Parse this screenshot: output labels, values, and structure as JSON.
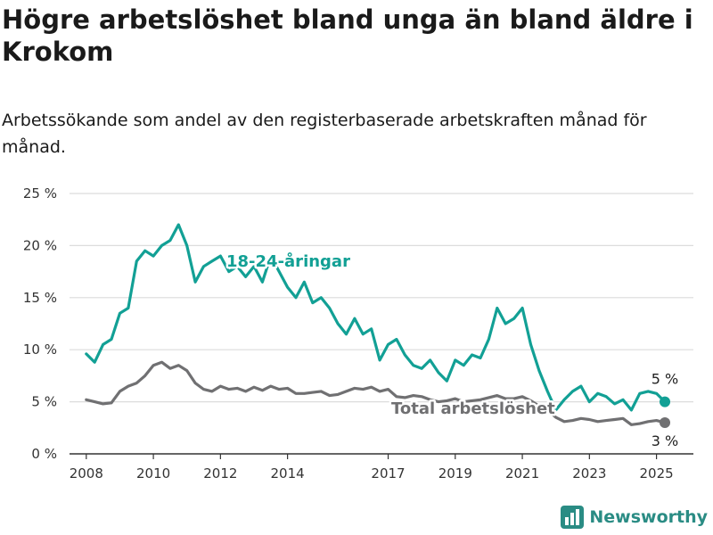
{
  "header": {
    "title": "Högre arbetslöshet bland unga än bland äldre i Krokom",
    "subtitle": "Arbetssökande som andel av den registerbaserade arbetskraften månad för månad."
  },
  "brand": {
    "name": "Newsworthy"
  },
  "colors": {
    "young": "#12a095",
    "total": "#707072",
    "grid": "#dcdcdc",
    "axis": "#333333",
    "brand": "#2a8c84"
  },
  "chart_data": {
    "type": "line",
    "ylim": [
      0,
      25
    ],
    "xlim": [
      2007.5,
      2026.1
    ],
    "y_ticks": [
      0,
      5,
      10,
      15,
      20,
      25
    ],
    "y_tick_labels": [
      "0 %",
      "5 %",
      "10 %",
      "15 %",
      "20 %",
      "25 %"
    ],
    "x_ticks": [
      2008,
      2010,
      2012,
      2014,
      2017,
      2019,
      2021,
      2023,
      2025
    ],
    "x_tick_labels": [
      "2008",
      "2010",
      "2012",
      "2014",
      "2017",
      "2019",
      "2021",
      "2023",
      "2025"
    ],
    "grid": true,
    "series": [
      {
        "name": "18-24-åringar",
        "end_label": "5 %",
        "x": [
          2008.0,
          2008.25,
          2008.5,
          2008.75,
          2009.0,
          2009.25,
          2009.5,
          2009.75,
          2010.0,
          2010.25,
          2010.5,
          2010.75,
          2011.0,
          2011.25,
          2011.5,
          2011.75,
          2012.0,
          2012.25,
          2012.5,
          2012.75,
          2013.0,
          2013.25,
          2013.5,
          2013.75,
          2014.0,
          2014.25,
          2014.5,
          2014.75,
          2015.0,
          2015.25,
          2015.5,
          2015.75,
          2016.0,
          2016.25,
          2016.5,
          2016.75,
          2017.0,
          2017.25,
          2017.5,
          2017.75,
          2018.0,
          2018.25,
          2018.5,
          2018.75,
          2019.0,
          2019.25,
          2019.5,
          2019.75,
          2020.0,
          2020.25,
          2020.5,
          2020.75,
          2021.0,
          2021.25,
          2021.5,
          2021.75,
          2022.0,
          2022.25,
          2022.5,
          2022.75,
          2023.0,
          2023.25,
          2023.5,
          2023.75,
          2024.0,
          2024.25,
          2024.5,
          2024.75,
          2025.0,
          2025.25
        ],
        "values": [
          9.6,
          8.8,
          10.5,
          11.0,
          13.5,
          14.0,
          18.5,
          19.5,
          19.0,
          20.0,
          20.5,
          22.0,
          20.0,
          16.5,
          18.0,
          18.5,
          19.0,
          17.5,
          18.0,
          17.0,
          18.0,
          16.5,
          19.0,
          17.5,
          16.0,
          15.0,
          16.5,
          14.5,
          15.0,
          14.0,
          12.5,
          11.5,
          13.0,
          11.5,
          12.0,
          9.0,
          10.5,
          11.0,
          9.5,
          8.5,
          8.2,
          9.0,
          7.8,
          7.0,
          9.0,
          8.5,
          9.5,
          9.2,
          11.0,
          14.0,
          12.5,
          13.0,
          14.0,
          10.5,
          8.0,
          6.0,
          4.2,
          5.2,
          6.0,
          6.5,
          5.0,
          5.8,
          5.5,
          4.8,
          5.2,
          4.2,
          5.8,
          6.0,
          5.8,
          5.0
        ]
      },
      {
        "name": "Total arbetslöshet",
        "end_label": "3 %",
        "x": [
          2008.0,
          2008.25,
          2008.5,
          2008.75,
          2009.0,
          2009.25,
          2009.5,
          2009.75,
          2010.0,
          2010.25,
          2010.5,
          2010.75,
          2011.0,
          2011.25,
          2011.5,
          2011.75,
          2012.0,
          2012.25,
          2012.5,
          2012.75,
          2013.0,
          2013.25,
          2013.5,
          2013.75,
          2014.0,
          2014.25,
          2014.5,
          2014.75,
          2015.0,
          2015.25,
          2015.5,
          2015.75,
          2016.0,
          2016.25,
          2016.5,
          2016.75,
          2017.0,
          2017.25,
          2017.5,
          2017.75,
          2018.0,
          2018.25,
          2018.5,
          2018.75,
          2019.0,
          2019.25,
          2019.5,
          2019.75,
          2020.0,
          2020.25,
          2020.5,
          2020.75,
          2021.0,
          2021.25,
          2021.5,
          2021.75,
          2022.0,
          2022.25,
          2022.5,
          2022.75,
          2023.0,
          2023.25,
          2023.5,
          2023.75,
          2024.0,
          2024.25,
          2024.5,
          2024.75,
          2025.0,
          2025.25
        ],
        "values": [
          5.2,
          5.0,
          4.8,
          4.9,
          6.0,
          6.5,
          6.8,
          7.5,
          8.5,
          8.8,
          8.2,
          8.5,
          8.0,
          6.8,
          6.2,
          6.0,
          6.5,
          6.2,
          6.3,
          6.0,
          6.4,
          6.1,
          6.5,
          6.2,
          6.3,
          5.8,
          5.8,
          5.9,
          6.0,
          5.6,
          5.7,
          6.0,
          6.3,
          6.2,
          6.4,
          6.0,
          6.2,
          5.5,
          5.4,
          5.6,
          5.5,
          5.2,
          5.0,
          5.1,
          5.3,
          5.0,
          5.1,
          5.2,
          5.4,
          5.6,
          5.3,
          5.3,
          5.5,
          5.1,
          4.6,
          4.2,
          3.5,
          3.1,
          3.2,
          3.4,
          3.3,
          3.1,
          3.2,
          3.3,
          3.4,
          2.8,
          2.9,
          3.1,
          3.2,
          3.0
        ]
      }
    ]
  }
}
